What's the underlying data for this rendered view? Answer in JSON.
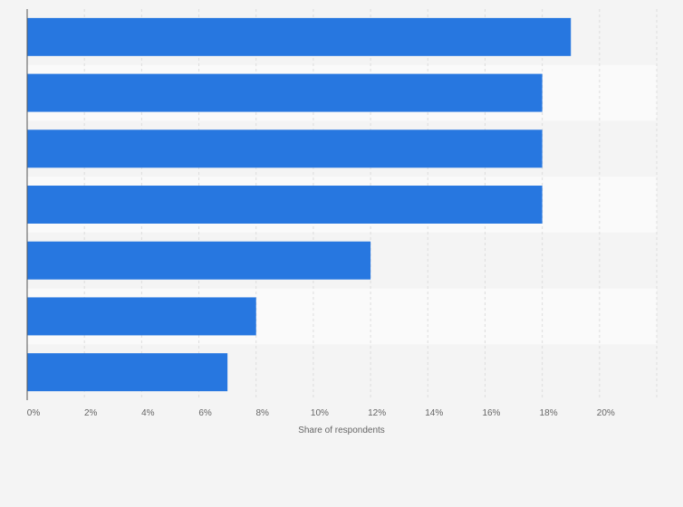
{
  "chart_data": {
    "type": "bar",
    "orientation": "horizontal",
    "categories": [
      "",
      "",
      "",
      "",
      "",
      "",
      ""
    ],
    "values": [
      19,
      18,
      18,
      18,
      12,
      8,
      7
    ],
    "xlabel": "Share of respondents",
    "ylabel": "",
    "xlim": [
      0,
      22
    ],
    "x_ticks": [
      0,
      2,
      4,
      6,
      8,
      10,
      12,
      14,
      16,
      18,
      20
    ],
    "x_tick_labels": [
      "0%",
      "2%",
      "4%",
      "6%",
      "8%",
      "10%",
      "12%",
      "14%",
      "16%",
      "18%",
      "20%"
    ],
    "grid": true,
    "legend": "none",
    "colors": {
      "bar": "#2777e0",
      "background": "#f4f4f4",
      "band_alt": "#fafafa",
      "grid": "#dddddd",
      "axis": "#555555",
      "text": "#666666"
    }
  }
}
